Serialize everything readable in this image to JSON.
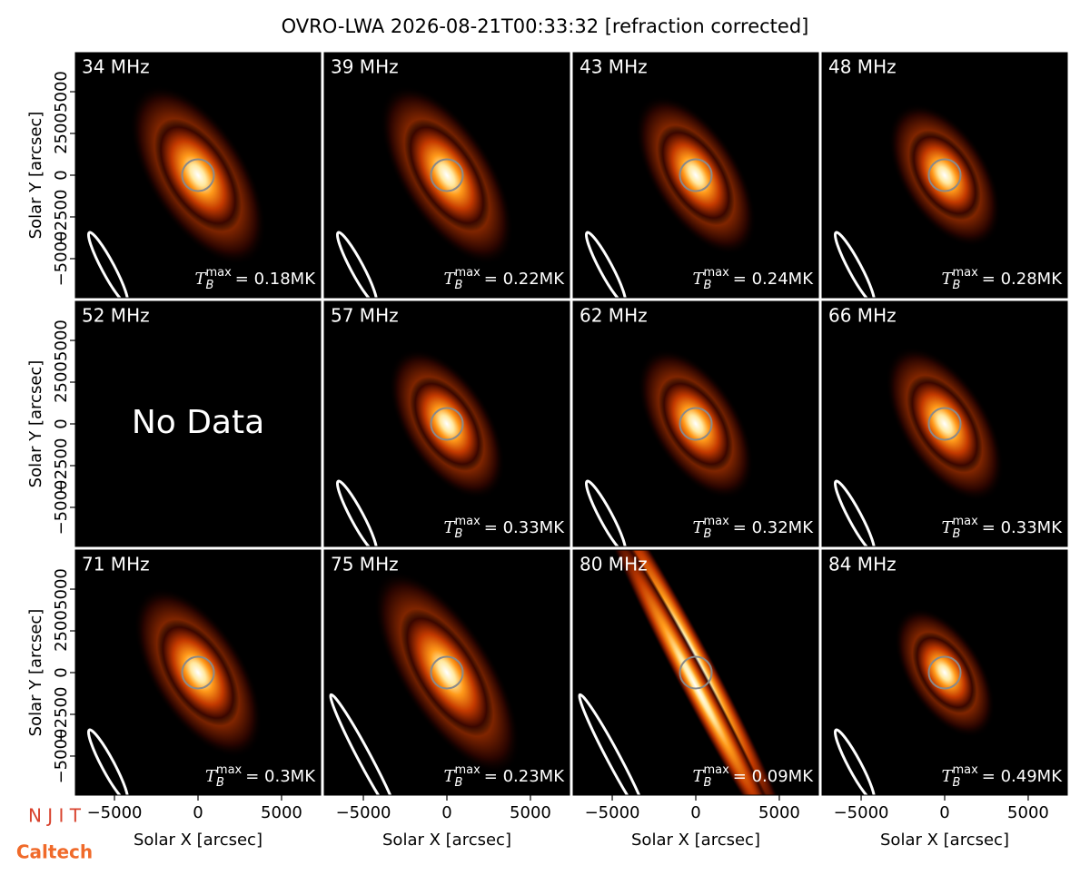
{
  "title": "OVRO-LWA 2026-08-21T00:33:32 [refraction corrected]",
  "logos": [
    "N J I T",
    "Caltech"
  ],
  "chart_data": [
    {
      "type": "image",
      "label": "34 MHz",
      "annotation": {
        "symbol": "T",
        "subscript": "B",
        "superscript": "max",
        "text": "= 0.18MK"
      },
      "ylabel": "Solar Y [arcsec]",
      "xlim": [
        -7340,
        7340
      ],
      "ylim": [
        -7340,
        7340
      ],
      "yticks": [
        {
          "value": -5000,
          "label": "−5000"
        },
        {
          "value": -2500,
          "label": "−2500"
        },
        0,
        2500,
        5000
      ]
    },
    {
      "type": "image",
      "label": "39 MHz",
      "annotation": {
        "symbol": "T",
        "subscript": "B",
        "superscript": "max",
        "text": "= 0.22MK"
      },
      "xlim": [
        -7340,
        7340
      ],
      "ylim": [
        -7340,
        7340
      ]
    },
    {
      "type": "image",
      "label": "43 MHz",
      "annotation": {
        "symbol": "T",
        "subscript": "B",
        "superscript": "max",
        "text": "= 0.24MK"
      },
      "xlim": [
        -7340,
        7340
      ],
      "ylim": [
        -7340,
        7340
      ]
    },
    {
      "type": "image",
      "label": "48 MHz",
      "annotation": {
        "symbol": "T",
        "subscript": "B",
        "superscript": "max",
        "text": "= 0.28MK"
      },
      "xlim": [
        -7340,
        7340
      ],
      "ylim": [
        -7340,
        7340
      ]
    },
    {
      "type": "image",
      "label": "52 MHz",
      "note": "No Data",
      "ylabel": "Solar Y [arcsec]",
      "xlim": [
        -7340,
        7340
      ],
      "ylim": [
        -7340,
        7340
      ],
      "yticks": [
        {
          "value": -5000,
          "label": "−5000"
        },
        {
          "value": -2500,
          "label": "−2500"
        },
        0,
        2500,
        5000
      ]
    },
    {
      "type": "image",
      "label": "57 MHz",
      "annotation": {
        "symbol": "T",
        "subscript": "B",
        "superscript": "max",
        "text": "= 0.33MK"
      },
      "xlim": [
        -7340,
        7340
      ],
      "ylim": [
        -7340,
        7340
      ]
    },
    {
      "type": "image",
      "label": "62 MHz",
      "annotation": {
        "symbol": "T",
        "subscript": "B",
        "superscript": "max",
        "text": "= 0.32MK"
      },
      "xlim": [
        -7340,
        7340
      ],
      "ylim": [
        -7340,
        7340
      ]
    },
    {
      "type": "image",
      "label": "66 MHz",
      "annotation": {
        "symbol": "T",
        "subscript": "B",
        "superscript": "max",
        "text": "= 0.33MK"
      },
      "xlim": [
        -7340,
        7340
      ],
      "ylim": [
        -7340,
        7340
      ]
    },
    {
      "type": "image",
      "label": "71 MHz",
      "annotation": {
        "symbol": "T",
        "subscript": "B",
        "superscript": "max",
        "text": "= 0.3MK"
      },
      "ylabel": "Solar Y [arcsec]",
      "xlabel": "Solar X [arcsec]",
      "xlim": [
        -7340,
        7340
      ],
      "ylim": [
        -7340,
        7340
      ],
      "xticks": [
        {
          "value": -5000,
          "label": "−5000"
        },
        0,
        5000
      ],
      "yticks": [
        {
          "value": -5000,
          "label": "−5000"
        },
        {
          "value": -2500,
          "label": "−2500"
        },
        0,
        2500,
        5000
      ]
    },
    {
      "type": "image",
      "label": "75 MHz",
      "annotation": {
        "symbol": "T",
        "subscript": "B",
        "superscript": "max",
        "text": "= 0.23MK"
      },
      "xlabel": "Solar X [arcsec]",
      "xlim": [
        -7340,
        7340
      ],
      "ylim": [
        -7340,
        7340
      ],
      "xticks": [
        {
          "value": -5000,
          "label": "−5000"
        },
        0,
        5000
      ]
    },
    {
      "type": "image",
      "label": "80 MHz",
      "annotation": {
        "symbol": "T",
        "subscript": "B",
        "superscript": "max",
        "text": "= 0.09MK"
      },
      "xlabel": "Solar X [arcsec]",
      "xlim": [
        -7340,
        7340
      ],
      "ylim": [
        -7340,
        7340
      ],
      "xticks": [
        {
          "value": -5000,
          "label": "−5000"
        },
        0,
        5000
      ]
    },
    {
      "type": "image",
      "label": "84 MHz",
      "annotation": {
        "symbol": "T",
        "subscript": "B",
        "superscript": "max",
        "text": "= 0.49MK"
      },
      "xlabel": "Solar X [arcsec]",
      "xlim": [
        -7340,
        7340
      ],
      "ylim": [
        -7340,
        7340
      ],
      "xticks": [
        {
          "value": -5000,
          "label": "−5000"
        },
        0,
        5000
      ]
    }
  ]
}
